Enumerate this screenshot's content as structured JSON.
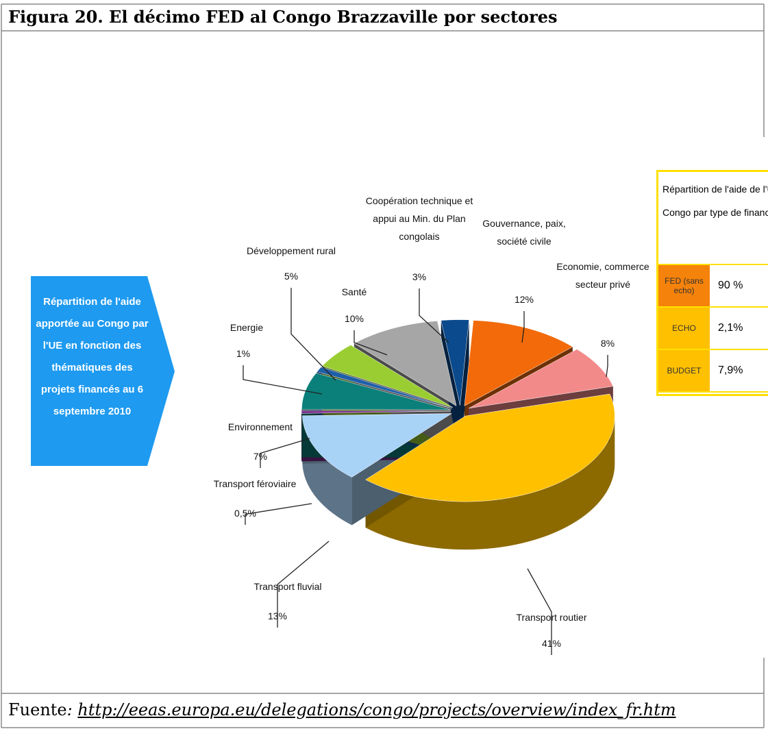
{
  "caption": "Figura 20. El décimo FED al Congo Brazzaville por sectores",
  "source_label": "Fuente",
  "source_sep": ": ",
  "source_url": "http://eeas.europa.eu/delegations/congo/projects/overview/index_fr.htm",
  "chart_data": {
    "type": "pie",
    "side_note": "Répartition de l'aide apportée au Congo par l'UE en fonction des thématiques des projets financés au 6 septembre 2010",
    "categories": [
      "Gouvernance, paix, société civile",
      "Economie, commerce secteur privé",
      "Transport routier",
      "Transport fluvial",
      "Transport féroviaire",
      "Environnement",
      "Energie",
      "Développement rural",
      "Santé",
      "Coopération technique et appui au Min. du Plan congolais"
    ],
    "values": [
      12,
      8,
      41,
      13,
      0.5,
      7,
      1,
      5,
      10,
      3
    ],
    "value_labels": [
      "12%",
      "8%",
      "41%",
      "13%",
      "0,5%",
      "7%",
      "1%",
      "5%",
      "10%",
      "3%"
    ],
    "colors": [
      "#f26a0a",
      "#f28a8a",
      "#ffc000",
      "#a9d2f7",
      "#7b2d8e",
      "#0b7f7a",
      "#1f5fa8",
      "#9acd32",
      "#a6a6a6",
      "#0b4a8c"
    ]
  },
  "financing_table": {
    "title": "Répartition de l'aide de l'UE au Congo par type de financement",
    "rows": [
      [
        "FED (sans echo)",
        "90 %"
      ],
      [
        "ECHO",
        "2,1%"
      ],
      [
        "BUDGET",
        "7,9%"
      ]
    ],
    "colors": [
      "#f5820a",
      "#ffc000",
      "#ffc000"
    ]
  }
}
